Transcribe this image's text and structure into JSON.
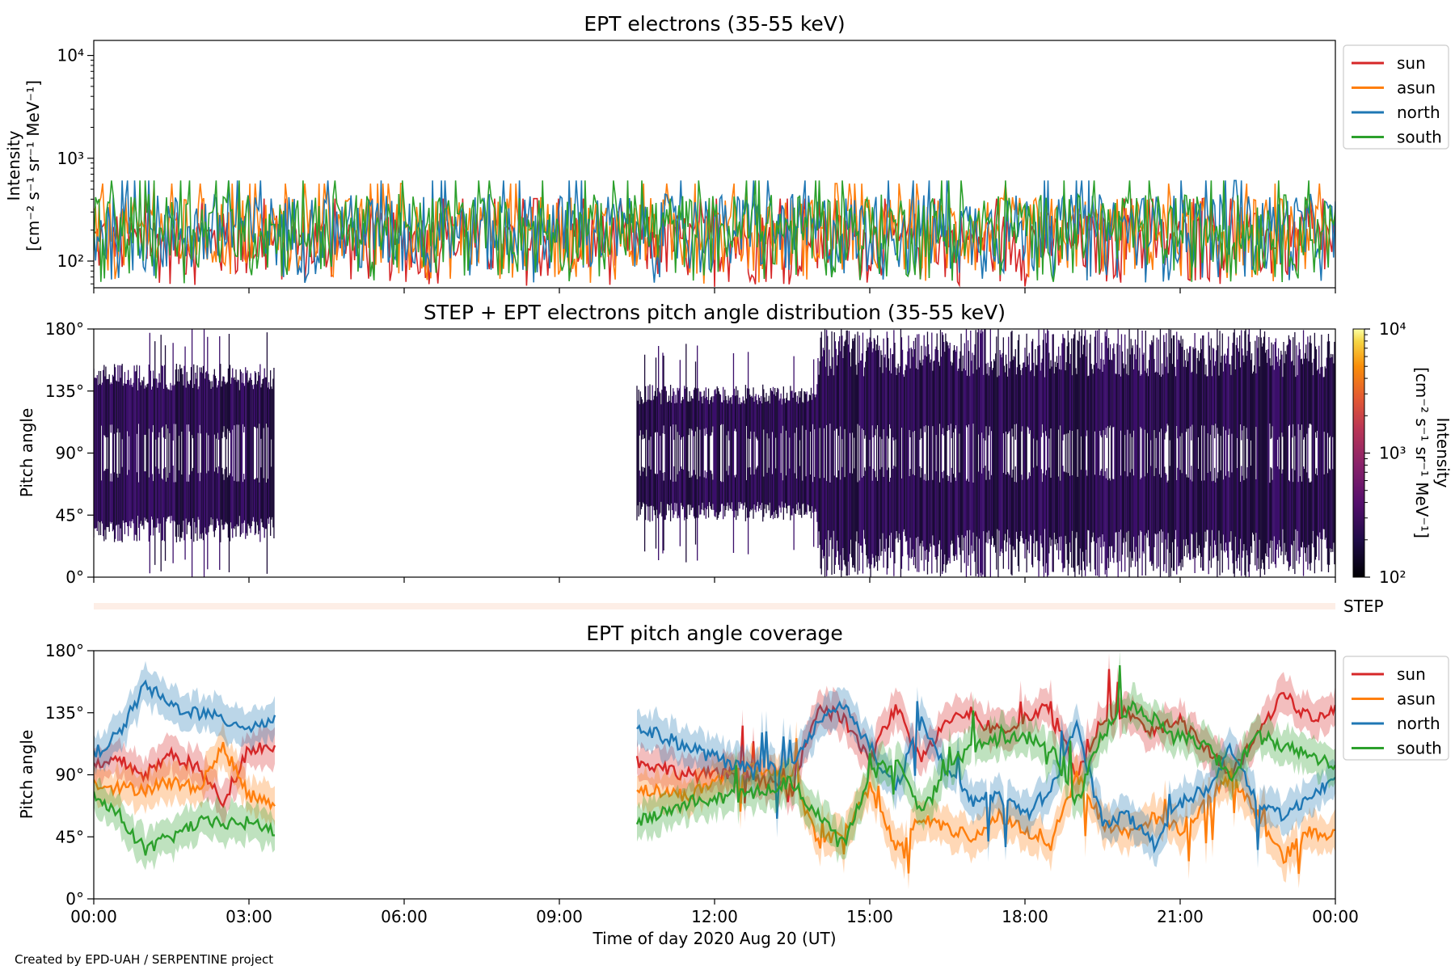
{
  "chart_data": [
    {
      "type": "line",
      "title": "EPT electrons (35-55 keV)",
      "ylabel": "Intensity",
      "yunit_label": "[cm⁻² s⁻¹ sr⁻¹ MeV⁻¹]",
      "yscale": "log",
      "ylim": [
        55,
        14000
      ],
      "yticks": [
        "10⁴",
        "10³",
        "10²"
      ],
      "ytick_values": [
        10000,
        1000,
        100
      ],
      "xlim_hours": [
        0,
        24
      ],
      "legend_position": "upper-right-outside",
      "series": [
        {
          "name": "sun",
          "color": "#d62728",
          "typical_range": [
            55,
            300
          ]
        },
        {
          "name": "asun",
          "color": "#ff7f0e",
          "typical_range": [
            60,
            420
          ]
        },
        {
          "name": "north",
          "color": "#1f77b4",
          "typical_range": [
            60,
            450
          ]
        },
        {
          "name": "south",
          "color": "#2ca02c",
          "typical_range": [
            60,
            450
          ]
        }
      ],
      "note": "Noisy time series, values mostly between 55 and 600"
    },
    {
      "type": "heatmap",
      "title": "STEP + EPT electrons pitch angle distribution (35-55 keV)",
      "ylabel": "Pitch angle",
      "yticks": [
        "180°",
        "135°",
        "90°",
        "45°",
        "0°"
      ],
      "ylim": [
        0,
        180
      ],
      "colorbar": {
        "label": "Intensity",
        "unit_label": "[cm⁻² s⁻¹ sr⁻¹ MeV⁻¹]",
        "ticks": [
          "10⁴",
          "10³",
          "10²"
        ],
        "scale": "log",
        "range": [
          100,
          10000
        ]
      },
      "data_intervals_hours": [
        [
          0,
          3.5
        ],
        [
          10.5,
          24
        ]
      ]
    },
    {
      "type": "bar",
      "label": "STEP",
      "description_color": "#fdeee6"
    },
    {
      "type": "line",
      "title": "EPT pitch angle coverage",
      "ylabel": "Pitch angle",
      "yticks": [
        "180°",
        "135°",
        "90°",
        "45°",
        "0°"
      ],
      "ylim": [
        0,
        180
      ],
      "xlabel": "Time of day 2020 Aug 20 (UT)",
      "xticks": [
        "00:00",
        "03:00",
        "06:00",
        "09:00",
        "12:00",
        "15:00",
        "18:00",
        "21:00",
        "00:00"
      ],
      "xtick_hours": [
        0,
        3,
        6,
        9,
        12,
        15,
        18,
        21,
        24
      ],
      "legend_position": "upper-right-outside",
      "series": [
        {
          "name": "sun",
          "color": "#d62728",
          "x": [
            0,
            0.5,
            1,
            1.5,
            2,
            2.5,
            3,
            3.5,
            10.5,
            11.5,
            12.5,
            13.5,
            14,
            14.5,
            15,
            15.5,
            16,
            16.5,
            17,
            17.5,
            18,
            18.5,
            19,
            19.5,
            20,
            20.5,
            21,
            21.5,
            22,
            22.5,
            23,
            23.5,
            24
          ],
          "y": [
            95,
            100,
            90,
            105,
            95,
            70,
            110,
            110,
            100,
            90,
            90,
            80,
            140,
            130,
            100,
            140,
            100,
            130,
            135,
            120,
            130,
            140,
            90,
            130,
            135,
            120,
            130,
            110,
            90,
            120,
            150,
            130,
            140
          ]
        },
        {
          "name": "asun",
          "color": "#ff7f0e",
          "x": [
            0,
            0.5,
            1,
            1.5,
            2,
            2.5,
            3,
            3.5,
            10.5,
            11.5,
            12.5,
            13.5,
            14,
            14.5,
            15,
            15.5,
            16,
            16.5,
            17,
            17.5,
            18,
            18.5,
            19,
            19.5,
            20,
            20.5,
            21,
            21.5,
            22,
            22.5,
            23,
            23.5,
            24
          ],
          "y": [
            85,
            80,
            80,
            85,
            80,
            110,
            75,
            70,
            80,
            75,
            95,
            90,
            40,
            50,
            80,
            40,
            60,
            50,
            45,
            60,
            50,
            40,
            90,
            55,
            45,
            60,
            50,
            70,
            90,
            60,
            30,
            50,
            45
          ]
        },
        {
          "name": "north",
          "color": "#1f77b4",
          "x": [
            0,
            0.5,
            1,
            1.5,
            2,
            2.5,
            3,
            3.5,
            10.5,
            11.5,
            12.5,
            13.5,
            14,
            14.5,
            15,
            15.5,
            16,
            16.5,
            17,
            17.5,
            18,
            18.5,
            19,
            19.5,
            20,
            20.5,
            21,
            21.5,
            22,
            22.5,
            23,
            23.5,
            24
          ],
          "y": [
            105,
            120,
            155,
            140,
            135,
            130,
            125,
            130,
            125,
            110,
            95,
            95,
            130,
            140,
            110,
            80,
            130,
            90,
            70,
            75,
            60,
            80,
            125,
            55,
            60,
            40,
            70,
            80,
            110,
            70,
            60,
            75,
            85
          ]
        },
        {
          "name": "south",
          "color": "#2ca02c",
          "x": [
            0,
            0.5,
            1,
            1.5,
            2,
            2.5,
            3,
            3.5,
            10.5,
            11.5,
            12.5,
            13.5,
            14,
            14.5,
            15,
            15.5,
            16,
            16.5,
            17,
            17.5,
            18,
            18.5,
            19,
            19.5,
            20,
            20.5,
            21,
            21.5,
            22,
            22.5,
            23,
            23.5,
            24
          ],
          "y": [
            75,
            60,
            35,
            45,
            55,
            55,
            55,
            50,
            55,
            70,
            75,
            85,
            60,
            40,
            90,
            100,
            60,
            95,
            110,
            115,
            120,
            110,
            70,
            120,
            140,
            130,
            120,
            110,
            90,
            120,
            110,
            105,
            95
          ]
        }
      ],
      "data_intervals_hours": [
        [
          0,
          3.5
        ],
        [
          10.5,
          24
        ]
      ]
    }
  ],
  "credit": "Created by EPD-UAH / SERPENTINE project"
}
